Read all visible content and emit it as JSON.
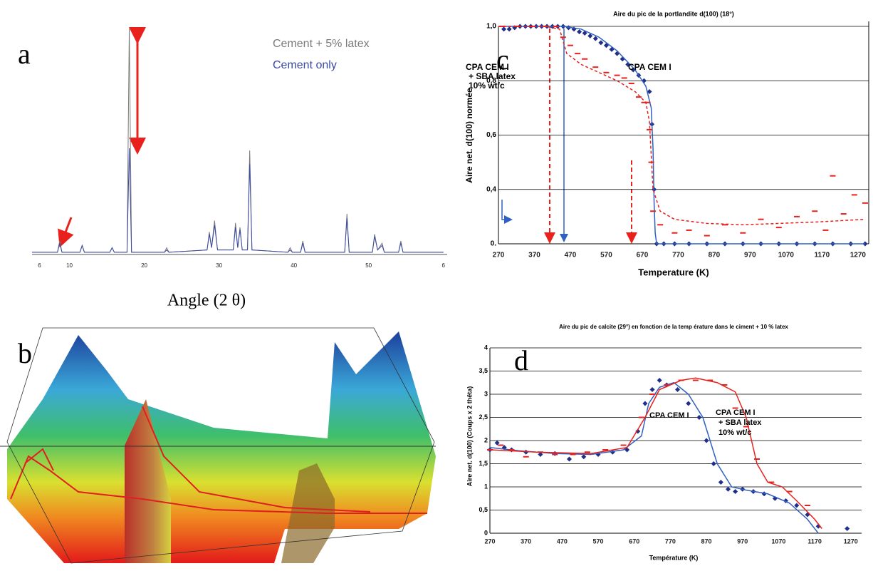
{
  "chart_data": [
    {
      "type": "line",
      "panel_label": "a",
      "xlabel": "Angle (2 θ)",
      "xlim": [
        5,
        60.5
      ],
      "xticks": [
        6,
        10,
        20,
        30,
        40,
        50,
        {
          "value": 60,
          "label": "6"
        }
      ],
      "x": [
        5,
        8.4,
        8.7,
        9.0,
        11.4,
        11.7,
        12.0,
        15.4,
        15.7,
        16.0,
        17.7,
        18.0,
        18.3,
        22.7,
        23.0,
        23.3,
        28.4,
        28.7,
        29.0,
        29.4,
        29.8,
        31.9,
        32.2,
        32.5,
        32.8,
        33.1,
        33.8,
        34.1,
        34.4,
        39.2,
        39.5,
        39.8,
        40.9,
        41.2,
        41.5,
        46.8,
        47.1,
        47.4,
        50.5,
        50.8,
        51.2,
        51.8,
        52.1,
        54.0,
        54.3,
        54.6,
        60
      ],
      "legend": true,
      "series": [
        {
          "name": "Cement + 5% latex",
          "color": "#7a7a7a",
          "mark": "line",
          "values": [
            1,
            1,
            6,
            1,
            1,
            4,
            1,
            1,
            3,
            1,
            1,
            100,
            1,
            1,
            3,
            1,
            2,
            10,
            3,
            15,
            2,
            2,
            14,
            3,
            12,
            2,
            2,
            46,
            2,
            1,
            3,
            1,
            1,
            6,
            1,
            1,
            18,
            1,
            1,
            9,
            2,
            5,
            1,
            1,
            6,
            1,
            1
          ]
        },
        {
          "name": "Cement only",
          "color": "#3b4aa0",
          "mark": "line",
          "values": [
            1,
            1,
            5,
            1,
            1,
            4,
            1,
            1,
            3,
            1,
            1,
            47,
            1,
            1,
            2,
            1,
            2,
            9,
            3,
            13,
            2,
            2,
            12,
            3,
            11,
            2,
            2,
            40,
            2,
            1,
            2,
            1,
            1,
            5,
            1,
            1,
            16,
            1,
            1,
            8,
            2,
            4,
            1,
            1,
            5,
            1,
            1
          ]
        }
      ]
    },
    {
      "type": "surface3d",
      "panel_label": "b"
    },
    {
      "type": "line",
      "panel_label": "c",
      "title": "Aire du pic de la portlandite d(100) (18°)",
      "xlabel": "Temperature (K)",
      "ylabel": "Aire net. d(100) normée",
      "xlim": [
        270,
        1300
      ],
      "ylim": [
        0.2,
        1.0
      ],
      "xticks": [
        270,
        370,
        470,
        570,
        670,
        770,
        870,
        970,
        1070,
        1170,
        1270
      ],
      "yticks": [
        {
          "value": 0.2,
          "label": "0."
        },
        {
          "value": 0.4,
          "label": "0,4"
        },
        {
          "value": 0.6,
          "label": "0,6"
        },
        {
          "value": 0.8,
          "label": "0,8"
        },
        {
          "value": 1.0,
          "label": "1,0"
        }
      ],
      "grid": true,
      "annotations": [
        [
          "CPA CEM I",
          "+ SBA latex",
          "10% wt/c"
        ],
        [
          "CPA CEM I"
        ]
      ],
      "series": [
        {
          "color": "#1f2f8a",
          "mark": "diamond",
          "x": [
            285,
            300,
            315,
            330,
            345,
            360,
            375,
            390,
            405,
            420,
            435,
            450,
            465,
            480,
            495,
            510,
            525,
            540,
            555,
            570,
            585,
            600,
            615,
            630,
            645,
            660,
            675,
            690,
            697,
            703,
            710,
            730,
            760,
            800,
            850,
            900,
            950,
            1000,
            1050,
            1100,
            1150,
            1200,
            1250,
            1290
          ],
          "values": [
            0.99,
            0.99,
            0.995,
            1,
            1,
            1,
            1,
            1,
            1,
            1,
            1,
            1,
            0.995,
            0.99,
            0.98,
            0.975,
            0.965,
            0.955,
            0.94,
            0.93,
            0.915,
            0.9,
            0.88,
            0.86,
            0.84,
            0.82,
            0.8,
            0.76,
            0.64,
            0.4,
            0.2,
            0.2,
            0.2,
            0.2,
            0.2,
            0.2,
            0.2,
            0.2,
            0.2,
            0.2,
            0.2,
            0.2,
            0.2,
            0.2
          ]
        },
        {
          "color": "#3060c0",
          "mark": "line",
          "x": [
            270,
            350,
            450,
            500,
            550,
            600,
            650,
            680,
            695,
            700,
            703,
            706,
            710,
            800,
            1000,
            1290
          ],
          "values": [
            1.0,
            1.0,
            1.0,
            0.99,
            0.96,
            0.91,
            0.84,
            0.78,
            0.7,
            0.55,
            0.35,
            0.24,
            0.2,
            0.2,
            0.2,
            0.2
          ]
        },
        {
          "color": "#e8211d",
          "mark": "dash",
          "x": [
            280,
            320,
            360,
            400,
            430,
            450,
            470,
            490,
            510,
            540,
            570,
            600,
            620,
            640,
            660,
            675,
            685,
            690,
            695,
            700,
            720,
            760,
            800,
            850,
            900,
            950,
            1000,
            1050,
            1100,
            1150,
            1180,
            1200,
            1230,
            1260,
            1290
          ],
          "values": [
            1,
            1,
            1,
            1,
            1,
            0.96,
            0.93,
            0.9,
            0.88,
            0.85,
            0.83,
            0.82,
            0.81,
            0.79,
            0.74,
            0.72,
            0.72,
            0.62,
            0.5,
            0.32,
            0.27,
            0.24,
            0.25,
            0.23,
            0.27,
            0.24,
            0.29,
            0.26,
            0.3,
            0.32,
            0.25,
            0.45,
            0.31,
            0.38,
            0.35
          ]
        },
        {
          "color": "#e8211d",
          "mark": "dashed-line",
          "x": [
            270,
            400,
            440,
            460,
            500,
            550,
            600,
            650,
            680,
            690,
            700,
            720,
            760,
            850,
            950,
            1050,
            1150,
            1290
          ],
          "values": [
            1.0,
            1.0,
            0.99,
            0.9,
            0.86,
            0.83,
            0.8,
            0.76,
            0.72,
            0.65,
            0.4,
            0.32,
            0.29,
            0.275,
            0.27,
            0.275,
            0.28,
            0.29
          ]
        }
      ]
    },
    {
      "type": "line",
      "panel_label": "d",
      "title": "Aire du pic de calcite (29°) en fonction de la temp érature dans le ciment + 10 % latex",
      "xlabel": "Température (K)",
      "ylabel": "Aire net. d(100) (Coups x 2 thêta)",
      "xlim": [
        270,
        1300
      ],
      "ylim": [
        0,
        4
      ],
      "xticks": [
        270,
        370,
        470,
        570,
        670,
        770,
        870,
        970,
        1070,
        1170,
        1270
      ],
      "yticks": [
        0,
        {
          "value": 0.5,
          "label": "0,5"
        },
        1,
        {
          "value": 1.5,
          "label": "1,5"
        },
        2,
        {
          "value": 2.5,
          "label": "2,5"
        },
        3,
        {
          "value": 3.5,
          "label": "3,5"
        },
        4
      ],
      "grid": true,
      "annotations": [
        [
          "CPA CEM I"
        ],
        [
          "CPA CEM I",
          "+ SBA latex",
          "10% wt/c"
        ]
      ],
      "series": [
        {
          "color": "#1f2f8a",
          "mark": "diamond",
          "x": [
            270,
            290,
            310,
            330,
            370,
            410,
            450,
            490,
            530,
            570,
            610,
            650,
            680,
            700,
            720,
            740,
            760,
            790,
            820,
            850,
            870,
            890,
            910,
            930,
            950,
            970,
            1000,
            1030,
            1060,
            1090,
            1120,
            1150,
            1180,
            1260
          ],
          "values": [
            1.8,
            1.95,
            1.85,
            1.8,
            1.75,
            1.7,
            1.72,
            1.6,
            1.65,
            1.7,
            1.75,
            1.8,
            2.2,
            2.8,
            3.1,
            3.3,
            3.2,
            3.1,
            2.8,
            2.5,
            2.0,
            1.5,
            1.1,
            0.95,
            0.9,
            0.95,
            0.9,
            0.85,
            0.75,
            0.7,
            0.6,
            0.4,
            0.15,
            0.1
          ]
        },
        {
          "color": "#3060c0",
          "mark": "line",
          "x": [
            270,
            350,
            450,
            550,
            640,
            690,
            710,
            740,
            780,
            820,
            860,
            900,
            940,
            980,
            1040,
            1100,
            1150,
            1180
          ],
          "values": [
            1.85,
            1.78,
            1.72,
            1.7,
            1.8,
            2.1,
            2.8,
            3.15,
            3.25,
            3.0,
            2.5,
            1.5,
            1.0,
            0.93,
            0.85,
            0.65,
            0.3,
            0.0
          ]
        },
        {
          "color": "#e8211d",
          "mark": "dash",
          "x": [
            270,
            300,
            330,
            370,
            410,
            450,
            500,
            540,
            590,
            640,
            690,
            720,
            760,
            800,
            840,
            880,
            920,
            950,
            980,
            1010,
            1050,
            1100,
            1150
          ],
          "values": [
            1.8,
            1.9,
            1.8,
            1.65,
            1.75,
            1.7,
            1.7,
            1.75,
            1.8,
            1.9,
            2.5,
            3.0,
            3.2,
            3.3,
            3.3,
            3.3,
            3.2,
            2.7,
            2.3,
            1.6,
            1.1,
            0.9,
            0.6
          ]
        },
        {
          "color": "#e8211d",
          "mark": "line",
          "x": [
            270,
            400,
            550,
            650,
            700,
            740,
            800,
            840,
            900,
            950,
            980,
            1010,
            1040,
            1080,
            1120,
            1170,
            1190
          ],
          "values": [
            1.8,
            1.75,
            1.72,
            1.85,
            2.5,
            3.1,
            3.3,
            3.35,
            3.25,
            3.05,
            2.5,
            1.5,
            1.1,
            1.0,
            0.7,
            0.3,
            0.1
          ]
        }
      ]
    }
  ]
}
